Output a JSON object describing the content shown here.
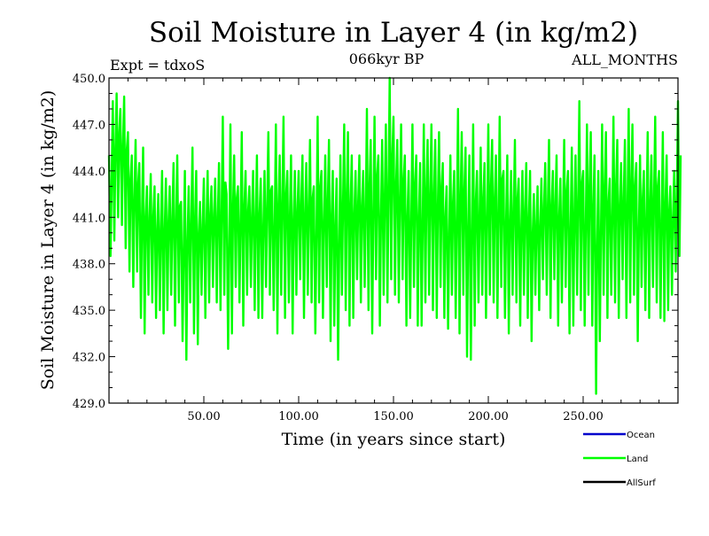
{
  "chart_data": {
    "type": "line",
    "title": "Soil Moisture in Layer 4 (in kg/m2)",
    "subtitle_left": "Expt = tdxoS",
    "subtitle_center": "066kyr BP",
    "subtitle_right": "ALL_MONTHS",
    "xlabel": "Time (in years since start)",
    "ylabel": "Soil Moisture in Layer 4 (in kg/m2)",
    "xlim": [
      0,
      300
    ],
    "ylim": [
      429.0,
      450.0
    ],
    "x_ticks": [
      50,
      100,
      150,
      200,
      250
    ],
    "x_tick_labels": [
      "50.00",
      "100.00",
      "150.00",
      "200.00",
      "250.00"
    ],
    "y_ticks": [
      429,
      432,
      435,
      438,
      441,
      444,
      447,
      450
    ],
    "y_tick_labels": [
      "429.0",
      "432.0",
      "435.0",
      "438.0",
      "441.0",
      "444.0",
      "447.0",
      "450.0"
    ],
    "grid": false,
    "legend_position": "bottom-right",
    "legend": [
      {
        "name": "Ocean",
        "color": "#0000cc"
      },
      {
        "name": "Land",
        "color": "#00ff00"
      },
      {
        "name": "AllSurf",
        "color": "#000000"
      }
    ],
    "series": [
      {
        "name": "Land",
        "color": "#00ff00",
        "x": [
          0,
          2,
          4,
          6,
          8,
          10,
          12,
          14,
          16,
          18,
          20,
          22,
          24,
          26,
          28,
          30,
          32,
          34,
          36,
          38,
          40,
          42,
          44,
          46,
          48,
          50,
          52,
          54,
          56,
          58,
          60,
          62,
          64,
          66,
          68,
          70,
          72,
          74,
          76,
          78,
          80,
          82,
          84,
          86,
          88,
          90,
          92,
          94,
          96,
          98,
          100,
          102,
          104,
          106,
          108,
          110,
          112,
          114,
          116,
          118,
          120,
          122,
          124,
          126,
          128,
          130,
          132,
          134,
          136,
          138,
          140,
          142,
          144,
          146,
          148,
          150,
          152,
          154,
          156,
          158,
          160,
          162,
          164,
          166,
          168,
          170,
          172,
          174,
          176,
          178,
          180,
          182,
          184,
          186,
          188,
          190,
          192,
          194,
          196,
          198,
          200,
          202,
          204,
          206,
          208,
          210,
          212,
          214,
          216,
          218,
          220,
          222,
          224,
          226,
          228,
          230,
          232,
          234,
          236,
          238,
          240,
          242,
          244,
          246,
          248,
          250,
          252,
          254,
          256,
          258,
          260,
          262,
          264,
          266,
          268,
          270,
          272,
          274,
          276,
          278,
          280,
          282,
          284,
          286,
          288,
          290,
          292,
          294,
          296,
          298,
          300
        ],
        "y_high": [
          445.0,
          448.5,
          449.0,
          448.0,
          448.8,
          446.5,
          445.0,
          446.0,
          444.5,
          445.5,
          443.0,
          443.8,
          443.0,
          442.5,
          444.0,
          443.5,
          443.0,
          444.5,
          445.0,
          442.0,
          444.0,
          443.0,
          445.5,
          444.0,
          442.0,
          443.5,
          444.0,
          443.0,
          443.5,
          444.5,
          447.5,
          442.5,
          447.0,
          445.0,
          443.0,
          446.5,
          444.0,
          443.0,
          444.0,
          445.0,
          443.5,
          444.0,
          446.5,
          443.0,
          447.0,
          445.0,
          447.5,
          444.0,
          445.0,
          444.0,
          444.0,
          445.0,
          444.5,
          446.0,
          443.0,
          447.5,
          444.0,
          445.0,
          446.0,
          444.0,
          443.5,
          445.0,
          447.0,
          446.5,
          445.0,
          444.0,
          445.0,
          444.0,
          448.0,
          446.0,
          447.5,
          445.0,
          446.0,
          447.0,
          450.0,
          447.5,
          446.0,
          447.0,
          445.0,
          444.0,
          447.0,
          445.0,
          444.5,
          447.0,
          446.0,
          447.0,
          446.0,
          446.5,
          444.5,
          443.0,
          445.0,
          444.0,
          448.0,
          446.5,
          445.5,
          445.0,
          447.0,
          444.0,
          445.5,
          444.5,
          447.0,
          446.0,
          445.0,
          447.5,
          444.0,
          445.0,
          444.0,
          446.0,
          443.5,
          444.0,
          444.5,
          444.0,
          442.5,
          443.0,
          443.5,
          444.5,
          446.0,
          444.0,
          445.0,
          443.5,
          446.0,
          444.0,
          445.5,
          445.0,
          448.5,
          444.0,
          447.0,
          446.5,
          445.0,
          444.0,
          447.0,
          446.5,
          443.5,
          447.5,
          446.0,
          444.5,
          446.0,
          448.0,
          447.0,
          444.5,
          445.0,
          444.0,
          446.5,
          445.0,
          447.5,
          444.0,
          446.5,
          445.0,
          443.0,
          444.0,
          448.5
        ],
        "y_low": [
          438.5,
          439.5,
          441.0,
          440.5,
          439.0,
          437.5,
          436.5,
          437.5,
          434.5,
          433.5,
          436.0,
          435.5,
          434.5,
          435.0,
          433.5,
          435.0,
          436.0,
          434.0,
          435.5,
          433.0,
          431.8,
          435.5,
          433.5,
          432.8,
          436.0,
          434.5,
          435.5,
          436.5,
          435.5,
          435.0,
          436.0,
          432.5,
          433.5,
          436.5,
          435.5,
          434.0,
          436.0,
          436.5,
          435.0,
          434.5,
          434.5,
          436.5,
          436.0,
          435.0,
          433.5,
          436.0,
          434.5,
          435.5,
          433.5,
          436.0,
          437.0,
          434.5,
          436.0,
          435.5,
          433.5,
          435.5,
          434.5,
          436.5,
          433.0,
          434.0,
          431.8,
          436.0,
          435.0,
          434.0,
          434.5,
          437.0,
          435.5,
          436.5,
          435.0,
          433.5,
          437.0,
          434.0,
          436.0,
          435.5,
          437.0,
          436.0,
          435.5,
          437.0,
          434.0,
          434.5,
          436.5,
          434.0,
          434.0,
          435.5,
          436.0,
          435.0,
          434.5,
          436.5,
          434.5,
          433.8,
          436.0,
          434.5,
          433.5,
          436.0,
          432.0,
          431.8,
          434.0,
          435.5,
          436.0,
          434.5,
          436.0,
          435.5,
          434.5,
          436.5,
          434.5,
          433.5,
          436.0,
          435.5,
          434.0,
          436.0,
          434.5,
          433.0,
          436.0,
          435.0,
          437.0,
          436.0,
          434.5,
          437.0,
          434.0,
          435.5,
          436.5,
          433.5,
          434.0,
          436.0,
          435.0,
          434.0,
          436.0,
          434.0,
          429.6,
          433.0,
          436.0,
          434.5,
          436.0,
          435.5,
          434.5,
          437.0,
          434.5,
          435.5,
          436.0,
          433.0,
          436.5,
          435.0,
          434.5,
          436.5,
          435.5,
          434.5,
          434.3,
          435.0,
          436.0,
          437.5,
          438.5
        ]
      }
    ]
  }
}
